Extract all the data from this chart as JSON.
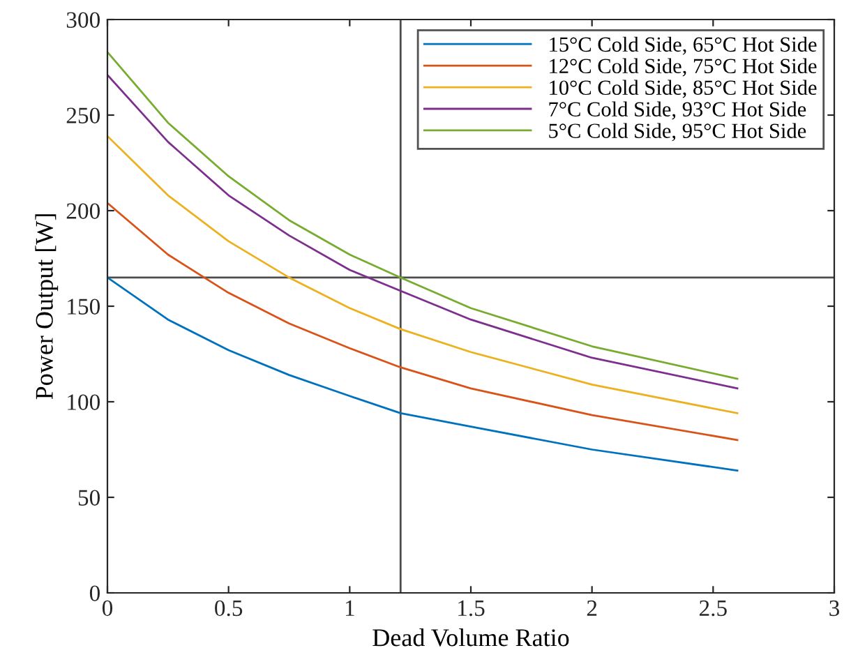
{
  "chart_data": {
    "type": "line",
    "xlabel": "Dead Volume Ratio",
    "ylabel": "Power Output [W]",
    "x": [
      0,
      0.25,
      0.5,
      0.75,
      1.0,
      1.21,
      1.5,
      2.0,
      2.6
    ],
    "series": [
      {
        "name": "15°C Cold Side, 65°C Hot Side",
        "color": "#0072bd",
        "values": [
          165,
          143,
          127,
          114,
          103,
          94,
          87,
          75,
          64
        ]
      },
      {
        "name": "12°C Cold Side, 75°C Hot Side",
        "color": "#d95319",
        "values": [
          204,
          177,
          157,
          141,
          128,
          118,
          107,
          93,
          80
        ]
      },
      {
        "name": "10°C Cold Side, 85°C Hot Side",
        "color": "#edb120",
        "values": [
          239,
          208,
          184,
          165,
          149,
          138,
          126,
          109,
          94
        ]
      },
      {
        "name": "7°C Cold Side, 93°C Hot Side",
        "color": "#7e2f8e",
        "values": [
          271,
          236,
          208,
          187,
          169,
          158,
          143,
          123,
          107
        ]
      },
      {
        "name": "5°C Cold Side, 95°C Hot Side",
        "color": "#77ac30",
        "values": [
          283,
          246,
          218,
          195,
          177,
          165,
          149,
          129,
          112
        ]
      }
    ],
    "xlim": [
      0,
      3
    ],
    "xticks": [
      0,
      0.5,
      1,
      1.5,
      2,
      2.5,
      3
    ],
    "ylim": [
      0,
      300
    ],
    "yticks": [
      0,
      50,
      100,
      150,
      200,
      250,
      300
    ],
    "ref_lines": [
      {
        "axis": "x",
        "value": 1.21,
        "color": "#4d4d4d"
      },
      {
        "axis": "y",
        "value": 165,
        "color": "#4d4d4d"
      }
    ],
    "legend": "top right",
    "grid": false
  }
}
